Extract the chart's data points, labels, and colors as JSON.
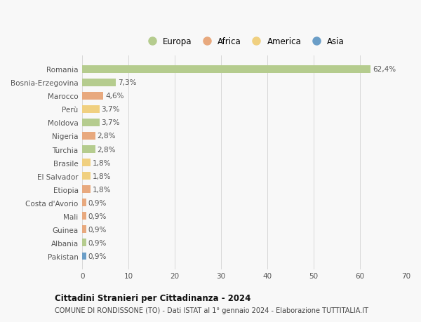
{
  "countries": [
    "Romania",
    "Bosnia-Erzegovina",
    "Marocco",
    "Perù",
    "Moldova",
    "Nigeria",
    "Turchia",
    "Brasile",
    "El Salvador",
    "Etiopia",
    "Costa d'Avorio",
    "Mali",
    "Guinea",
    "Albania",
    "Pakistan"
  ],
  "values": [
    62.4,
    7.3,
    4.6,
    3.7,
    3.7,
    2.8,
    2.8,
    1.8,
    1.8,
    1.8,
    0.9,
    0.9,
    0.9,
    0.9,
    0.9
  ],
  "labels": [
    "62,4%",
    "7,3%",
    "4,6%",
    "3,7%",
    "3,7%",
    "2,8%",
    "2,8%",
    "1,8%",
    "1,8%",
    "1,8%",
    "0,9%",
    "0,9%",
    "0,9%",
    "0,9%",
    "0,9%"
  ],
  "continents": [
    "Europa",
    "Europa",
    "Africa",
    "America",
    "Europa",
    "Africa",
    "Europa",
    "America",
    "America",
    "Africa",
    "Africa",
    "Africa",
    "Africa",
    "Europa",
    "Asia"
  ],
  "colors": {
    "Europa": "#b5cc8e",
    "Africa": "#e8a97e",
    "America": "#f0d080",
    "Asia": "#6b9ec7"
  },
  "legend_order": [
    "Europa",
    "Africa",
    "America",
    "Asia"
  ],
  "xlim": [
    0,
    70
  ],
  "xticks": [
    0,
    10,
    20,
    30,
    40,
    50,
    60,
    70
  ],
  "title": "Cittadini Stranieri per Cittadinanza - 2024",
  "subtitle": "COMUNE DI RONDISSONE (TO) - Dati ISTAT al 1° gennaio 2024 - Elaborazione TUTTITALIA.IT",
  "bg_color": "#f8f8f8",
  "bar_height": 0.55
}
